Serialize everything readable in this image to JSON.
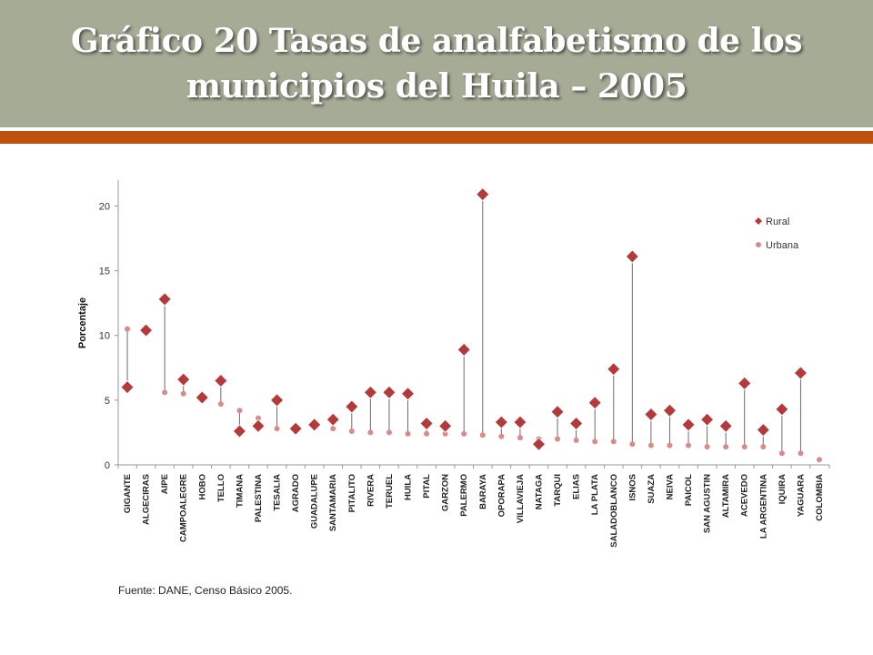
{
  "title": "Gráfico 20 Tasas de analfabetismo de los municipios del Huila – 2005",
  "source": "Fuente: DANE, Censo Básico 2005.",
  "colors": {
    "header_bg": "#a6ab96",
    "accent": "#c0500d",
    "rural": "#b33a3a",
    "urbana": "#d98a8a"
  },
  "chart_data": {
    "type": "scatter",
    "title": "",
    "xlabel": "",
    "ylabel": "Porcentaje",
    "ylim": [
      0,
      22
    ],
    "yticks": [
      0,
      5,
      10,
      15,
      20
    ],
    "grid": false,
    "legend_position": "top-right",
    "categories": [
      "GIGANTE",
      "ALGECIRAS",
      "AIPE",
      "CAMPOALEGRE",
      "HOBO",
      "TELLO",
      "TIMANA",
      "PALESTINA",
      "TESALIA",
      "AGRADO",
      "GUADALUPE",
      "SANTAMARIA",
      "PITALITO",
      "RIVERA",
      "TERUEL",
      "HUILA",
      "PITAL",
      "GARZON",
      "PALERMO",
      "BARAYA",
      "OPORAPA",
      "VILLAVIEJA",
      "NATAGA",
      "TARQUI",
      "ELIAS",
      "LA PLATA",
      "SALADOBLANCO",
      "ISNOS",
      "SUAZA",
      "NEIVA",
      "PAICOL",
      "SAN AGUSTIN",
      "ALTAMIRA",
      "ACEVEDO",
      "LA ARGENTINA",
      "IQUIRA",
      "YAGUARA",
      "COLOMBIA"
    ],
    "series": [
      {
        "name": "Rural",
        "marker": "diamond",
        "color": "#b33a3a",
        "values": [
          6.0,
          10.4,
          12.8,
          6.6,
          5.2,
          6.5,
          2.6,
          3.0,
          5.0,
          2.8,
          3.1,
          3.5,
          4.5,
          5.6,
          5.6,
          5.5,
          3.2,
          3.0,
          8.9,
          20.9,
          3.3,
          3.3,
          1.6,
          4.1,
          3.2,
          4.8,
          7.4,
          16.1,
          3.9,
          4.2,
          3.1,
          3.5,
          3.0,
          6.3,
          2.7,
          4.3,
          7.1,
          null
        ]
      },
      {
        "name": "Urbana",
        "marker": "circle",
        "color": "#d98a8a",
        "values": [
          10.5,
          10.4,
          5.6,
          5.5,
          5.4,
          4.7,
          4.2,
          3.6,
          2.8,
          2.8,
          2.9,
          2.8,
          2.6,
          2.5,
          2.5,
          2.4,
          2.4,
          2.4,
          2.4,
          2.3,
          2.2,
          2.1,
          2.0,
          2.0,
          1.9,
          1.8,
          1.8,
          1.6,
          1.5,
          1.5,
          1.5,
          1.4,
          1.4,
          1.4,
          1.4,
          0.9,
          0.9,
          0.4
        ]
      }
    ]
  }
}
